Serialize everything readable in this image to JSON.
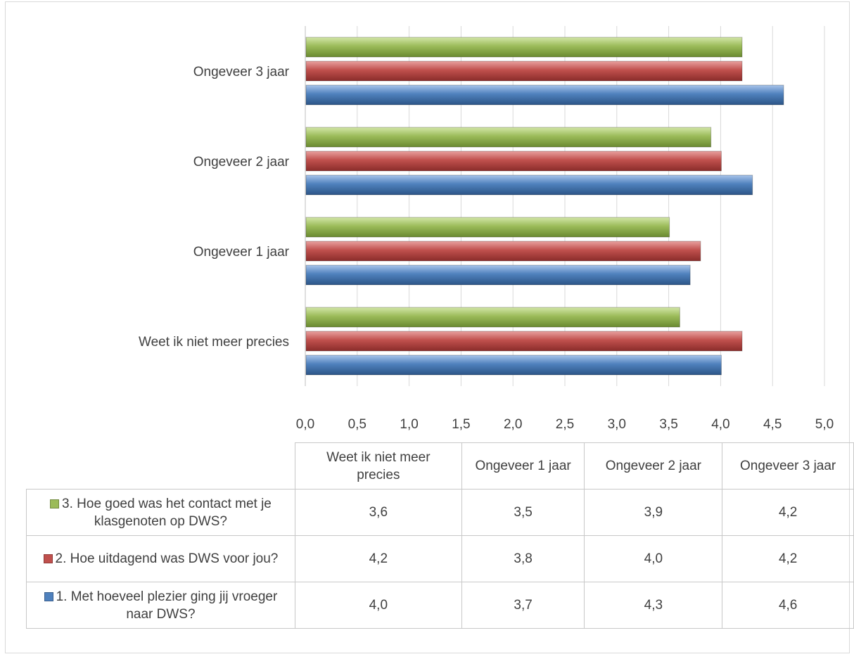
{
  "chart_data": {
    "type": "bar",
    "orientation": "horizontal",
    "categories": [
      "Weet ik niet meer precies",
      "Ongeveer 1 jaar",
      "Ongeveer 2 jaar",
      "Ongeveer 3 jaar"
    ],
    "series": [
      {
        "name": "1. Met hoeveel plezier ging jij vroeger naar DWS?",
        "color": "#4f81bd",
        "values": [
          4.0,
          3.7,
          4.3,
          4.6
        ],
        "labels": [
          "4,0",
          "3,7",
          "4,3",
          "4,6"
        ]
      },
      {
        "name": "2. Hoe uitdagend was DWS voor jou?",
        "color": "#c0504d",
        "values": [
          4.2,
          3.8,
          4.0,
          4.2
        ],
        "labels": [
          "4,2",
          "3,8",
          "4,0",
          "4,2"
        ]
      },
      {
        "name": "3. Hoe goed was het contact met je klasgenoten op DWS?",
        "color": "#9bbb59",
        "values": [
          3.6,
          3.5,
          3.9,
          4.2
        ],
        "labels": [
          "3,6",
          "3,5",
          "3,9",
          "4,2"
        ]
      }
    ],
    "xlim": [
      0,
      5
    ],
    "ticks": [
      "0,0",
      "0,5",
      "1,0",
      "1,5",
      "2,0",
      "2,5",
      "3,0",
      "3,5",
      "4,0",
      "4,5",
      "5,0"
    ],
    "grid": true,
    "legend": "data-table-below",
    "title": "",
    "xlabel": "",
    "ylabel": ""
  },
  "table": {
    "header": [
      "Weet ik niet meer precies",
      "Ongeveer 1 jaar",
      "Ongeveer 2 jaar",
      "Ongeveer 3 jaar"
    ],
    "row_order": [
      2,
      1,
      0
    ]
  }
}
